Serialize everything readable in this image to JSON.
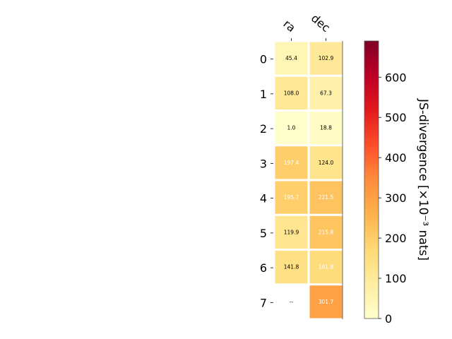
{
  "chart_data": {
    "type": "heatmap",
    "columns": [
      "ra",
      "dec"
    ],
    "rows": [
      "0",
      "1",
      "2",
      "3",
      "4",
      "5",
      "6",
      "7"
    ],
    "values": [
      [
        45.4,
        102.9
      ],
      [
        108.0,
        67.3
      ],
      [
        1.0,
        18.8
      ],
      [
        197.4,
        124.0
      ],
      [
        195.7,
        221.5
      ],
      [
        119.9,
        215.8
      ],
      [
        141.8,
        161.8
      ],
      [
        null,
        301.7
      ]
    ],
    "cell_labels": [
      [
        "45.4",
        "102.9"
      ],
      [
        "108.0",
        "67.3"
      ],
      [
        "1.0",
        "18.8"
      ],
      [
        "197.4",
        "124.0"
      ],
      [
        "195.7",
        "221.5"
      ],
      [
        "119.9",
        "215.8"
      ],
      [
        "141.8",
        "161.8"
      ],
      [
        "--",
        "301.7"
      ]
    ],
    "colorbar": {
      "label": "JS-divergence [×10⁻³ nats]",
      "range": [
        0,
        690
      ],
      "ticks": [
        0,
        100,
        200,
        300,
        400,
        500,
        600
      ],
      "colormap": [
        "#ffffcc",
        "#ffeda0",
        "#fed976",
        "#feb24c",
        "#fd8d3c",
        "#fc4e2a",
        "#e31a1c",
        "#bd0026",
        "#800026"
      ]
    }
  }
}
